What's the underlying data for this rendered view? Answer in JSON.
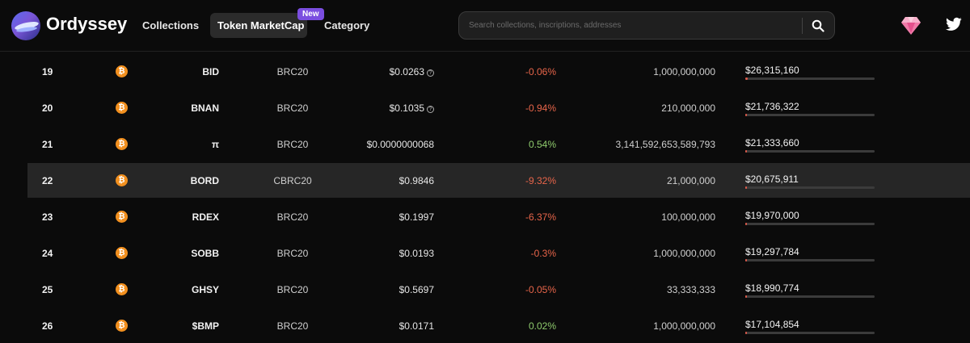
{
  "header": {
    "brand": "Ordyssey",
    "nav": {
      "collections": "Collections",
      "token_marketcap": "Token MarketCap",
      "new_badge": "New",
      "category": "Category"
    },
    "search": {
      "placeholder": "Search collections, inscriptions, addresses"
    }
  },
  "colors": {
    "negative": "#e8654a",
    "positive": "#8fcb6d",
    "bitcoin": "#f2901f",
    "accent": "#7b4ee0"
  },
  "coin_symbol": "₿",
  "info_symbol": "?",
  "table": {
    "rows": [
      {
        "rank": "19",
        "ticker": "BID",
        "standard": "BRC20",
        "price": "$0.0263",
        "price_info": true,
        "change": "-0.06%",
        "direction": "neg",
        "supply": "1,000,000,000",
        "market_cap": "$26,315,160",
        "bar_fraction": 0.02,
        "highlighted": false
      },
      {
        "rank": "20",
        "ticker": "BNAN",
        "standard": "BRC20",
        "price": "$0.1035",
        "price_info": true,
        "change": "-0.94%",
        "direction": "neg",
        "supply": "210,000,000",
        "market_cap": "$21,736,322",
        "bar_fraction": 0.015,
        "highlighted": false
      },
      {
        "rank": "21",
        "ticker": "π",
        "standard": "BRC20",
        "price": "$0.0000000068",
        "price_info": false,
        "change": "0.54%",
        "direction": "pos",
        "supply": "3,141,592,653,589,793",
        "market_cap": "$21,333,660",
        "bar_fraction": 0.015,
        "highlighted": false
      },
      {
        "rank": "22",
        "ticker": "BORD",
        "standard": "CBRC20",
        "price": "$0.9846",
        "price_info": false,
        "change": "-9.32%",
        "direction": "neg",
        "supply": "21,000,000",
        "market_cap": "$20,675,911",
        "bar_fraction": 0.015,
        "highlighted": true
      },
      {
        "rank": "23",
        "ticker": "RDEX",
        "standard": "BRC20",
        "price": "$0.1997",
        "price_info": false,
        "change": "-6.37%",
        "direction": "neg",
        "supply": "100,000,000",
        "market_cap": "$19,970,000",
        "bar_fraction": 0.015,
        "highlighted": false
      },
      {
        "rank": "24",
        "ticker": "SOBB",
        "standard": "BRC20",
        "price": "$0.0193",
        "price_info": false,
        "change": "-0.3%",
        "direction": "neg",
        "supply": "1,000,000,000",
        "market_cap": "$19,297,784",
        "bar_fraction": 0.015,
        "highlighted": false
      },
      {
        "rank": "25",
        "ticker": "GHSY",
        "standard": "BRC20",
        "price": "$0.5697",
        "price_info": false,
        "change": "-0.05%",
        "direction": "neg",
        "supply": "33,333,333",
        "market_cap": "$18,990,774",
        "bar_fraction": 0.015,
        "highlighted": false
      },
      {
        "rank": "26",
        "ticker": "$BMP",
        "standard": "BRC20",
        "price": "$0.0171",
        "price_info": false,
        "change": "0.02%",
        "direction": "pos",
        "supply": "1,000,000,000",
        "market_cap": "$17,104,854",
        "bar_fraction": 0.015,
        "highlighted": false
      }
    ]
  }
}
